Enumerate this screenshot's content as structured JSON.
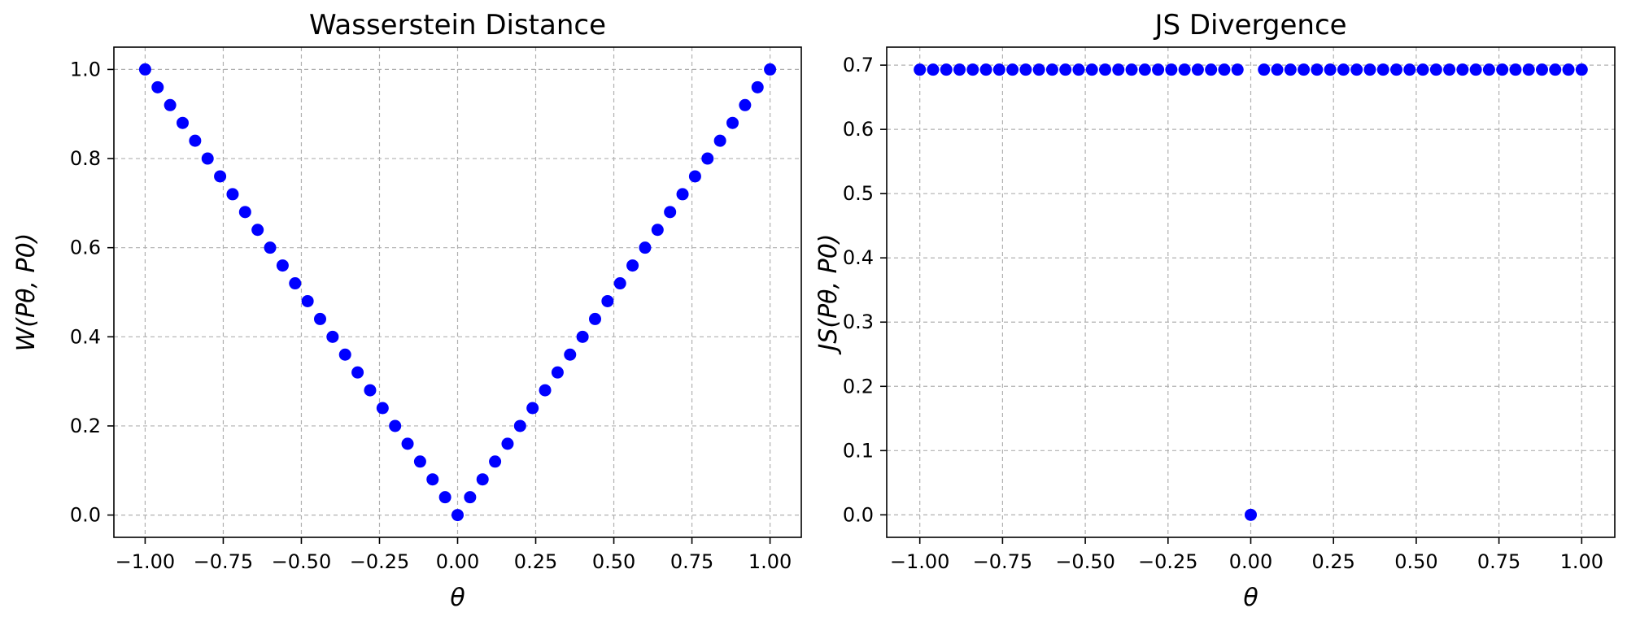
{
  "chart_data": [
    {
      "type": "scatter",
      "title": "Wasserstein Distance",
      "xlabel": "θ",
      "ylabel": "W(Pθ, P0)",
      "xlim": [
        -1.1,
        1.1
      ],
      "ylim": [
        -0.05,
        1.05
      ],
      "xticks": [
        -1.0,
        -0.75,
        -0.5,
        -0.25,
        0.0,
        0.25,
        0.5,
        0.75,
        1.0
      ],
      "xtick_labels": [
        "−1.00",
        "−0.75",
        "−0.50",
        "−0.25",
        "0.00",
        "0.25",
        "0.50",
        "0.75",
        "1.00"
      ],
      "yticks": [
        0.0,
        0.2,
        0.4,
        0.6,
        0.8,
        1.0
      ],
      "ytick_labels": [
        "0.0",
        "0.2",
        "0.4",
        "0.6",
        "0.8",
        "1.0"
      ],
      "grid": true,
      "marker_color": "#0000ff",
      "series": [
        {
          "x": [
            -1.0,
            -0.96,
            -0.92,
            -0.88,
            -0.84,
            -0.8,
            -0.76,
            -0.72,
            -0.68,
            -0.64,
            -0.6,
            -0.56,
            -0.52,
            -0.48,
            -0.44,
            -0.4,
            -0.36,
            -0.32,
            -0.28,
            -0.24,
            -0.2,
            -0.16,
            -0.12,
            -0.08,
            -0.04,
            0.0,
            0.04,
            0.08,
            0.12,
            0.16,
            0.2,
            0.24,
            0.28,
            0.32,
            0.36,
            0.4,
            0.44,
            0.48,
            0.52,
            0.56,
            0.6,
            0.64,
            0.68,
            0.72,
            0.76,
            0.8,
            0.84,
            0.88,
            0.92,
            0.96,
            1.0
          ],
          "y": [
            1.0,
            0.96,
            0.92,
            0.88,
            0.84,
            0.8,
            0.76,
            0.72,
            0.68,
            0.64,
            0.6,
            0.56,
            0.52,
            0.48,
            0.44,
            0.4,
            0.36,
            0.32,
            0.28,
            0.24,
            0.2,
            0.16,
            0.12,
            0.08,
            0.04,
            0.0,
            0.04,
            0.08,
            0.12,
            0.16,
            0.2,
            0.24,
            0.28,
            0.32,
            0.36,
            0.4,
            0.44,
            0.48,
            0.52,
            0.56,
            0.6,
            0.64,
            0.68,
            0.72,
            0.76,
            0.8,
            0.84,
            0.88,
            0.92,
            0.96,
            1.0
          ]
        }
      ]
    },
    {
      "type": "scatter",
      "title": "JS Divergence",
      "xlabel": "θ",
      "ylabel": "JS(Pθ, P0)",
      "xlim": [
        -1.1,
        1.1
      ],
      "ylim": [
        -0.035,
        0.728
      ],
      "xticks": [
        -1.0,
        -0.75,
        -0.5,
        -0.25,
        0.0,
        0.25,
        0.5,
        0.75,
        1.0
      ],
      "xtick_labels": [
        "−1.00",
        "−0.75",
        "−0.50",
        "−0.25",
        "0.00",
        "0.25",
        "0.50",
        "0.75",
        "1.00"
      ],
      "yticks": [
        0.0,
        0.1,
        0.2,
        0.3,
        0.4,
        0.5,
        0.6,
        0.7
      ],
      "ytick_labels": [
        "0.0",
        "0.1",
        "0.2",
        "0.3",
        "0.4",
        "0.5",
        "0.6",
        "0.7"
      ],
      "grid": true,
      "marker_color": "#0000ff",
      "series": [
        {
          "x": [
            -1.0,
            -0.96,
            -0.92,
            -0.88,
            -0.84,
            -0.8,
            -0.76,
            -0.72,
            -0.68,
            -0.64,
            -0.6,
            -0.56,
            -0.52,
            -0.48,
            -0.44,
            -0.4,
            -0.36,
            -0.32,
            -0.28,
            -0.24,
            -0.2,
            -0.16,
            -0.12,
            -0.08,
            -0.04,
            0.0,
            0.04,
            0.08,
            0.12,
            0.16,
            0.2,
            0.24,
            0.28,
            0.32,
            0.36,
            0.4,
            0.44,
            0.48,
            0.52,
            0.56,
            0.6,
            0.64,
            0.68,
            0.72,
            0.76,
            0.8,
            0.84,
            0.88,
            0.92,
            0.96,
            1.0
          ],
          "y": [
            0.693,
            0.693,
            0.693,
            0.693,
            0.693,
            0.693,
            0.693,
            0.693,
            0.693,
            0.693,
            0.693,
            0.693,
            0.693,
            0.693,
            0.693,
            0.693,
            0.693,
            0.693,
            0.693,
            0.693,
            0.693,
            0.693,
            0.693,
            0.693,
            0.693,
            0.0,
            0.693,
            0.693,
            0.693,
            0.693,
            0.693,
            0.693,
            0.693,
            0.693,
            0.693,
            0.693,
            0.693,
            0.693,
            0.693,
            0.693,
            0.693,
            0.693,
            0.693,
            0.693,
            0.693,
            0.693,
            0.693,
            0.693,
            0.693,
            0.693,
            0.693
          ]
        }
      ]
    }
  ]
}
